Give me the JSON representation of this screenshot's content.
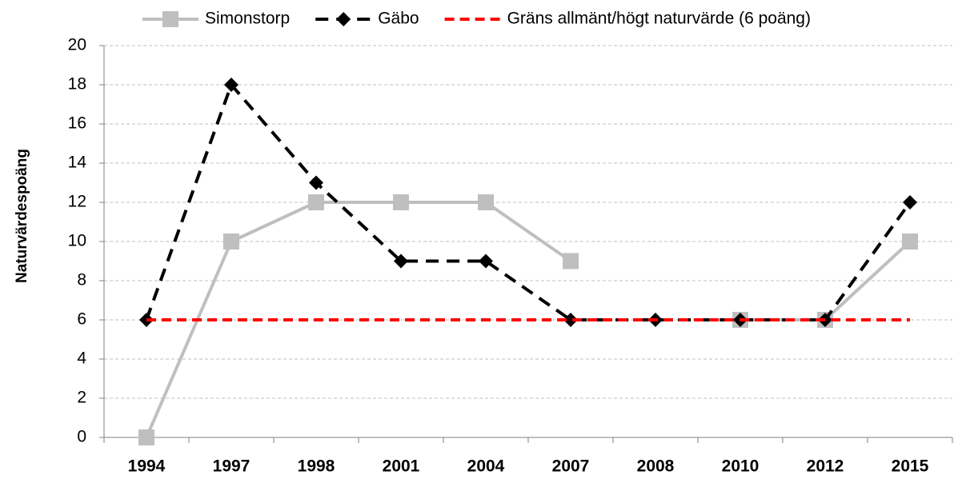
{
  "chart_data": {
    "type": "line",
    "y_label": "Naturvärdespoäng",
    "categories": [
      "1994",
      "1997",
      "1998",
      "2001",
      "2004",
      "2007",
      "2008",
      "2010",
      "2012",
      "2015"
    ],
    "series": [
      {
        "name": "Simonstorp",
        "color": "#bfbfbf",
        "marker": "square",
        "dash": "solid",
        "values": [
          0,
          10,
          12,
          12,
          12,
          9,
          null,
          6,
          6,
          10
        ]
      },
      {
        "name": "Gäbo",
        "color": "#000000",
        "marker": "diamond",
        "dash": "dashed",
        "values": [
          6,
          18,
          13,
          9,
          9,
          6,
          6,
          6,
          6,
          12
        ]
      },
      {
        "name": "Gräns allmänt/högt naturvärde (6 poäng)",
        "color": "#ff0000",
        "marker": "none",
        "dash": "dashed",
        "values": [
          6,
          6,
          6,
          6,
          6,
          6,
          6,
          6,
          6,
          6
        ]
      }
    ],
    "ylim": [
      0,
      20
    ],
    "yticks": [
      0,
      2,
      4,
      6,
      8,
      10,
      12,
      14,
      16,
      18,
      20
    ],
    "grid": true
  }
}
